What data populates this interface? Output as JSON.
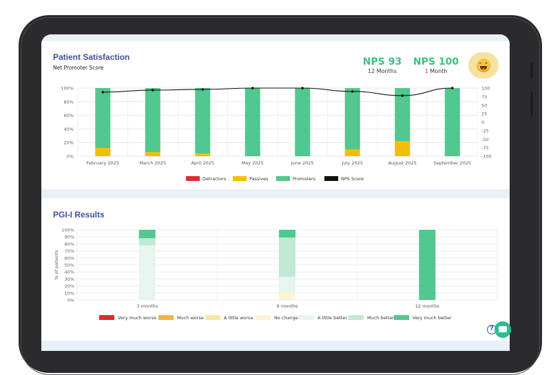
{
  "satisfaction": {
    "title": "Patient Satisfaction",
    "subtitle": "Net Promoter Score",
    "nps_12m": {
      "value": "NPS 93",
      "period": "12 Months"
    },
    "nps_1m": {
      "value": "NPS 100",
      "period_number": "1",
      "period_unit": " Month"
    },
    "emoji": "grinning-face-icon"
  },
  "pgi": {
    "title": "PGI-I Results"
  },
  "colors": {
    "title": "#3d4fa0",
    "detractors": "#dc2c2c",
    "passives": "#f0c000",
    "promoters": "#52c78f",
    "nps_line": "#111111"
  },
  "chart_data": [
    {
      "type": "bar",
      "stacked": true,
      "categories": [
        "February 2025",
        "March 2025",
        "April 2025",
        "May 2025",
        "June 2025",
        "July 2025",
        "August 2025",
        "September 2025"
      ],
      "series": [
        {
          "name": "Detractors",
          "values": [
            0,
            0,
            0,
            0,
            0,
            0,
            0,
            0
          ],
          "color": "#dc2c2c"
        },
        {
          "name": "Passives",
          "values": [
            12,
            6,
            4,
            0,
            0,
            10,
            22,
            0
          ],
          "color": "#f0c000"
        },
        {
          "name": "Promoters",
          "values": [
            88,
            94,
            96,
            100,
            100,
            90,
            78,
            100
          ],
          "color": "#52c78f"
        }
      ],
      "line": {
        "name": "NPS Score",
        "values": [
          88,
          94,
          96,
          100,
          100,
          90,
          78,
          100
        ],
        "color": "#111111",
        "axis": "right"
      },
      "ylim": [
        0,
        100
      ],
      "y_ticks": [
        "0%",
        "20%",
        "40%",
        "60%",
        "80%",
        "100%"
      ],
      "y2lim": [
        -100,
        100
      ],
      "y2_ticks": [
        "-100",
        "-75",
        "-50",
        "-25",
        "0",
        "25",
        "50",
        "75",
        "100"
      ],
      "legend": [
        "Detractors",
        "Passives",
        "Promoters",
        "NPS Score"
      ],
      "legend_position": "bottom",
      "grid": true
    },
    {
      "type": "bar",
      "stacked": true,
      "categories": [
        "3 months",
        "6 months",
        "12 months"
      ],
      "ylabel": "% of patients",
      "ylim": [
        0,
        100
      ],
      "y_ticks": [
        "0%",
        "10%",
        "20%",
        "30%",
        "40%",
        "50%",
        "60%",
        "70%",
        "80%",
        "90%",
        "100%"
      ],
      "series": [
        {
          "name": "Very much worse",
          "values": [
            0,
            0,
            0
          ],
          "color": "#dc2c2c"
        },
        {
          "name": "Much worse",
          "values": [
            0,
            0,
            0
          ],
          "color": "#f0b840"
        },
        {
          "name": "A little worse",
          "values": [
            0,
            0,
            0
          ],
          "color": "#f9e7a0"
        },
        {
          "name": "No change",
          "values": [
            0,
            12,
            0
          ],
          "color": "#fbf3d5"
        },
        {
          "name": "A little better",
          "values": [
            78,
            21,
            0
          ],
          "color": "#e6f6ee"
        },
        {
          "name": "Much better",
          "values": [
            10,
            56,
            0
          ],
          "color": "#bfe9d2"
        },
        {
          "name": "Very much better",
          "values": [
            12,
            11,
            100
          ],
          "color": "#52c78f"
        }
      ],
      "legend_position": "bottom",
      "grid": true
    }
  ]
}
